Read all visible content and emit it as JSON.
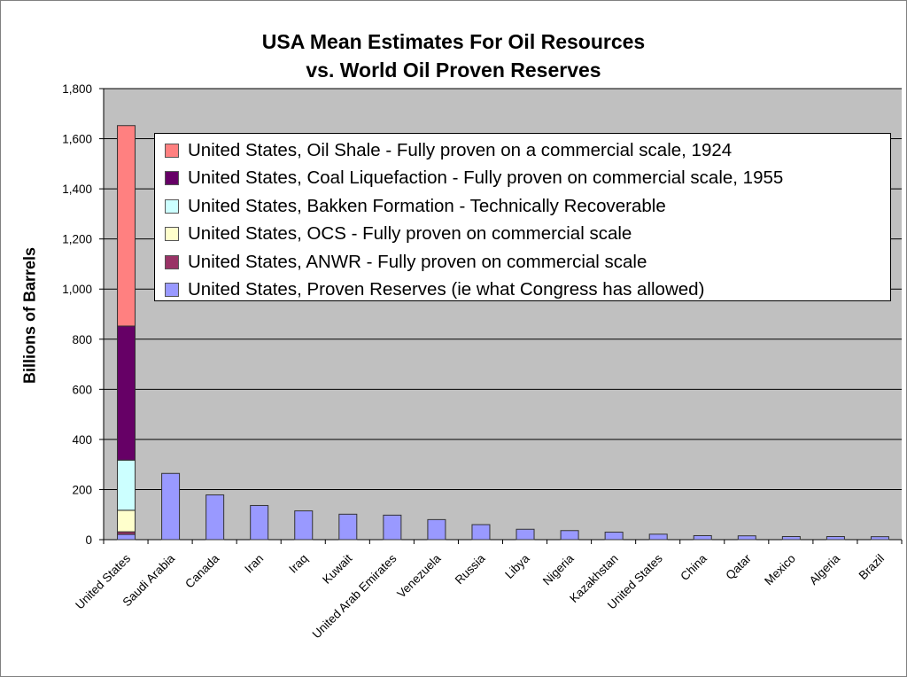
{
  "chart_data": {
    "type": "bar",
    "stacked": true,
    "title": [
      "USA Mean Estimates For Oil Resources",
      "vs. World Oil Proven Reserves"
    ],
    "xlabel": "",
    "ylabel": "Billions of Barrels",
    "ylim": [
      0,
      1800
    ],
    "yticks": [
      "0",
      "200",
      "400",
      "600",
      "800",
      "1,000",
      "1,200",
      "1,400",
      "1,600",
      "1,800"
    ],
    "grid": true,
    "legend_placement": "top-right inside",
    "plot_background": "#c0c0c0",
    "categories": [
      "United States",
      "Saudi Arabia",
      "Canada",
      "Iran",
      "Iraq",
      "Kuwait",
      "United Arab Emirates",
      "Venezuela",
      "Russia",
      "Libya",
      "Nigeria",
      "Kazakhstan",
      "United States",
      "China",
      "Qatar",
      "Mexico",
      "Algeria",
      "Brazil"
    ],
    "series": [
      {
        "name": "United States, Proven Reserves (ie what Congress has allowed)",
        "color": "#9999ff",
        "values": [
          21,
          264.3,
          178.6,
          136.3,
          115,
          101.5,
          97.8,
          80,
          60,
          41.5,
          36.2,
          30,
          21.8,
          16,
          15.2,
          12.4,
          12.3,
          11.8
        ]
      },
      {
        "name": "United States, ANWR - Fully proven on commercial scale",
        "color": "#993366",
        "values": [
          10.4,
          0,
          0,
          0,
          0,
          0,
          0,
          0,
          0,
          0,
          0,
          0,
          0,
          0,
          0,
          0,
          0,
          0
        ]
      },
      {
        "name": "United States, OCS - Fully proven on commercial scale",
        "color": "#ffffcc",
        "values": [
          86,
          0,
          0,
          0,
          0,
          0,
          0,
          0,
          0,
          0,
          0,
          0,
          0,
          0,
          0,
          0,
          0,
          0
        ]
      },
      {
        "name": "United States, Bakken Formation - Technically Recoverable",
        "color": "#ccffff",
        "values": [
          200,
          0,
          0,
          0,
          0,
          0,
          0,
          0,
          0,
          0,
          0,
          0,
          0,
          0,
          0,
          0,
          0,
          0
        ]
      },
      {
        "name": "United States, Coal Liquefaction - Fully proven on commercial scale, 1955",
        "color": "#660066",
        "values": [
          535,
          0,
          0,
          0,
          0,
          0,
          0,
          0,
          0,
          0,
          0,
          0,
          0,
          0,
          0,
          0,
          0,
          0
        ]
      },
      {
        "name": "United States, Oil Shale - Fully proven on a commercial scale, 1924",
        "color": "#ff8080",
        "values": [
          800,
          0,
          0,
          0,
          0,
          0,
          0,
          0,
          0,
          0,
          0,
          0,
          0,
          0,
          0,
          0,
          0,
          0
        ]
      }
    ]
  }
}
